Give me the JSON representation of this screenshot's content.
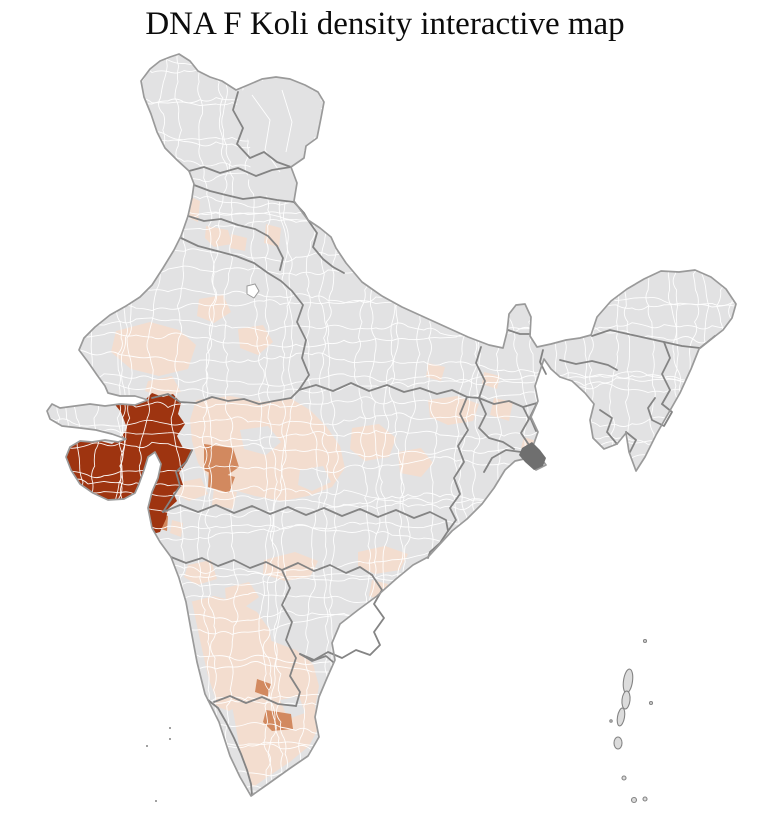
{
  "title": "DNA F Koli density interactive map",
  "map": {
    "colors": {
      "background": "#ffffff",
      "land": "#e2e2e3",
      "district_border": "#ffffff",
      "state_border": "#848484",
      "coast": "#9a9a9a",
      "density_high": "#9e3410",
      "density_medium": "#d2895f",
      "density_low": "#f3ddcf",
      "delta_marsh": "#6f6f6f",
      "island": "#dcdcdc",
      "enclave": "#ffffff"
    }
  }
}
